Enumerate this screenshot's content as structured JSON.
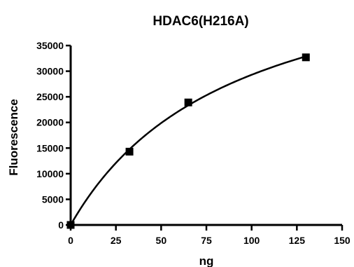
{
  "chart_data": {
    "type": "scatter",
    "title": "HDAC6(H216A)",
    "xlabel": "ng",
    "ylabel": "Fluorescence",
    "xlim": [
      0,
      150
    ],
    "ylim": [
      0,
      35000
    ],
    "xticks": [
      "0",
      "25",
      "50",
      "75",
      "100",
      "125",
      "150"
    ],
    "yticks": [
      "0",
      "5000",
      "10000",
      "15000",
      "20000",
      "25000",
      "30000",
      "35000"
    ],
    "series": [
      {
        "x": [
          0,
          32.5,
          65,
          130
        ],
        "y": [
          0,
          14300,
          23900,
          32700
        ],
        "marker": "square",
        "fit": "hyperbolic"
      }
    ],
    "grid": false,
    "colors": {
      "marks": "#000000"
    }
  }
}
